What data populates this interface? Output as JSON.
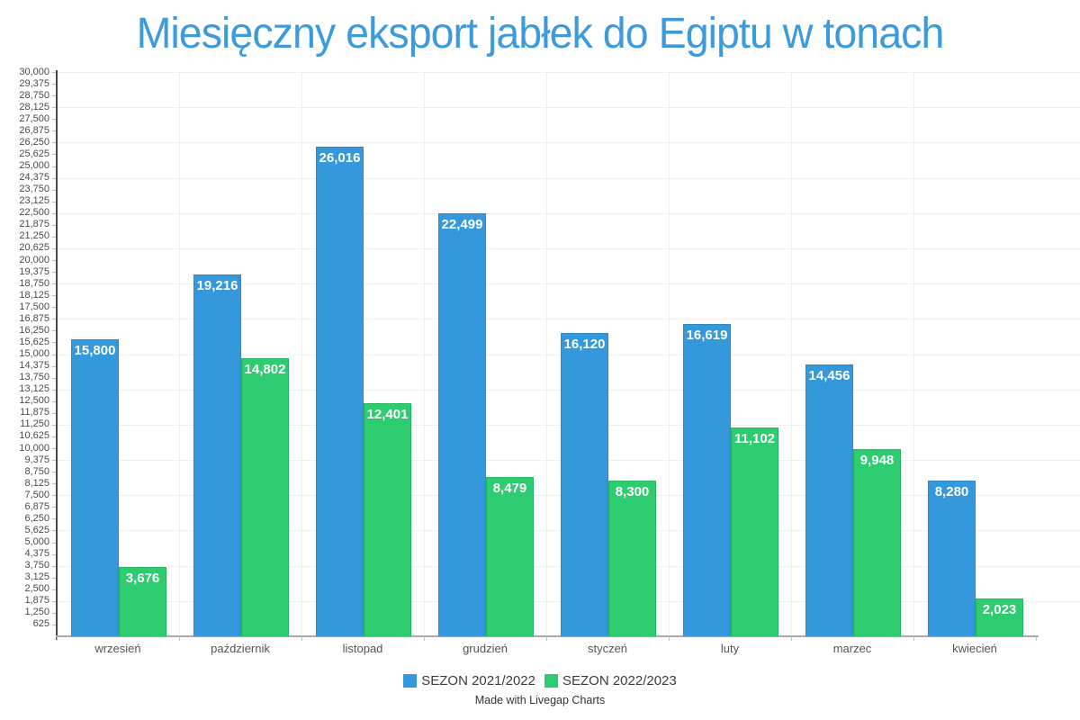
{
  "page": {
    "footer": "Made with Livegap Charts"
  },
  "chart_data": {
    "type": "bar",
    "title": "Miesięczny eksport jabłek do Egiptu w tonach",
    "title_color": "#3d9bdc",
    "categories": [
      "wrzesień",
      "październik",
      "listopad",
      "grudzień",
      "styczeń",
      "luty",
      "marzec",
      "kwiecień"
    ],
    "series": [
      {
        "name": "SEZON 2021/2022",
        "color": "#3498db",
        "border_color": "#2e89c5",
        "values": [
          15800,
          19216,
          26016,
          22499,
          16120,
          16619,
          14456,
          8280
        ]
      },
      {
        "name": "SEZON 2022/2023",
        "color": "#2ecc71",
        "border_color": "#29b765",
        "values": [
          3676,
          14802,
          12401,
          8479,
          8300,
          11102,
          9948,
          2023
        ]
      }
    ],
    "xlabel": "",
    "ylabel": "",
    "ylim": [
      0,
      30000
    ],
    "y_tick_step": 625,
    "y_gridline_step": 1875,
    "y_tick_format": "thousands-comma",
    "grid": true,
    "legend_position": "bottom",
    "value_label_style": "white bold, inside top of bar",
    "colors": {
      "gridline": "#efefef",
      "y_axis_line": "#4a4a4a",
      "x_axis_line": "#aaaaaa",
      "tick_mark": "#c2c2c2",
      "y_tick_label": "#4a4a4a",
      "x_tick_label": "#545454"
    }
  }
}
